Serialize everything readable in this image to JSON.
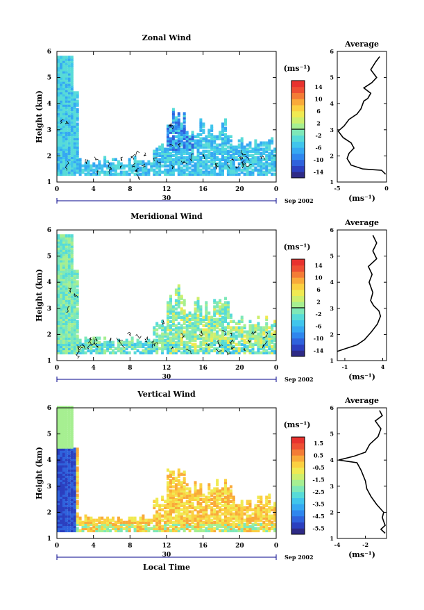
{
  "colors": {
    "scale_main": [
      "#2e2a86",
      "#2b3fbf",
      "#2f62dc",
      "#2f86ee",
      "#35a8f2",
      "#40c5ec",
      "#57dbd8",
      "#7ee8b8",
      "#a6ef91",
      "#cdef6e",
      "#f0ea52",
      "#fbd041",
      "#f9aa3a",
      "#f47c36",
      "#ee4f33",
      "#e8322e"
    ],
    "scale_vertical": [
      "#2e2a86",
      "#2b3fbf",
      "#2f62dc",
      "#2f86ee",
      "#35a8f2",
      "#40c5ec",
      "#57dbd8",
      "#7ee8b8",
      "#a6ef91",
      "#cdef6e",
      "#f0ea52",
      "#fbd041",
      "#f9aa3a",
      "#f47c36",
      "#ee4f33",
      "#e8322e"
    ]
  },
  "chart_data": [
    {
      "type": "heatmap",
      "title": "Zonal Wind",
      "ylabel": "Height (km)",
      "yticks": [
        "1",
        "2",
        "3",
        "4",
        "5",
        "6"
      ],
      "ylim": [
        1,
        6
      ],
      "xticks": [
        "0",
        "4",
        "8",
        "12",
        "16",
        "20",
        "0"
      ],
      "xlim": [
        0,
        24
      ],
      "date_label": "30",
      "date_suffix": "Sep 2002",
      "colorbar_unit": "(ms⁻¹)",
      "colorbar_ticks": [
        "14",
        "10",
        "6",
        "2",
        "-2",
        "-6",
        "-10",
        "-14"
      ],
      "average_panel": {
        "title": "Average",
        "xticks": [
          "-5",
          "0"
        ],
        "xlim": [
          -5,
          0
        ],
        "xlabel": "(ms⁻¹)",
        "yticks": [
          "1",
          "2",
          "3",
          "4",
          "5",
          "6"
        ],
        "profile": [
          [
            -0.1,
            1.3
          ],
          [
            -0.5,
            1.45
          ],
          [
            -2.4,
            1.5
          ],
          [
            -3.6,
            1.65
          ],
          [
            -4.0,
            1.9
          ],
          [
            -3.8,
            2.1
          ],
          [
            -3.3,
            2.3
          ],
          [
            -3.6,
            2.5
          ],
          [
            -4.4,
            2.7
          ],
          [
            -4.9,
            2.95
          ],
          [
            -4.3,
            3.15
          ],
          [
            -3.8,
            3.4
          ],
          [
            -3.0,
            3.6
          ],
          [
            -2.6,
            3.8
          ],
          [
            -2.3,
            4.1
          ],
          [
            -1.9,
            4.2
          ],
          [
            -1.6,
            4.4
          ],
          [
            -2.3,
            4.6
          ],
          [
            -1.5,
            4.8
          ],
          [
            -1.0,
            5.0
          ],
          [
            -1.6,
            5.3
          ],
          [
            -1.1,
            5.6
          ],
          [
            -0.7,
            5.8
          ]
        ]
      }
    },
    {
      "type": "heatmap",
      "title": "Meridional Wind",
      "ylabel": "Height (km)",
      "yticks": [
        "1",
        "2",
        "3",
        "4",
        "5",
        "6"
      ],
      "ylim": [
        1,
        6
      ],
      "xticks": [
        "0",
        "4",
        "8",
        "12",
        "16",
        "20",
        "0"
      ],
      "xlim": [
        0,
        24
      ],
      "date_label": "30",
      "date_suffix": "Sep 2002",
      "colorbar_unit": "(ms⁻¹)",
      "colorbar_ticks": [
        "14",
        "10",
        "6",
        "2",
        "-2",
        "-6",
        "-10",
        "-14"
      ],
      "average_panel": {
        "title": "Average",
        "xticks": [
          "-1",
          "4"
        ],
        "xlim": [
          -2,
          4.5
        ],
        "xlabel": "(ms⁻¹)",
        "yticks": [
          "1",
          "2",
          "3",
          "4",
          "5",
          "6"
        ],
        "profile": [
          [
            -2.0,
            1.35
          ],
          [
            -1.0,
            1.45
          ],
          [
            0.6,
            1.6
          ],
          [
            1.6,
            1.8
          ],
          [
            2.5,
            2.1
          ],
          [
            3.3,
            2.4
          ],
          [
            3.7,
            2.7
          ],
          [
            3.5,
            2.9
          ],
          [
            2.8,
            3.1
          ],
          [
            2.4,
            3.3
          ],
          [
            2.7,
            3.6
          ],
          [
            2.2,
            4.0
          ],
          [
            2.6,
            4.3
          ],
          [
            2.1,
            4.6
          ],
          [
            3.2,
            4.9
          ],
          [
            2.7,
            5.2
          ],
          [
            3.2,
            5.5
          ],
          [
            2.7,
            5.8
          ]
        ]
      }
    },
    {
      "type": "heatmap",
      "title": "Vertical Wind",
      "ylabel": "Height (km)",
      "yticks": [
        "1",
        "2",
        "3",
        "4",
        "5",
        "6"
      ],
      "ylim": [
        1,
        6
      ],
      "xticks": [
        "0",
        "4",
        "8",
        "12",
        "16",
        "20",
        "0"
      ],
      "xlim": [
        0,
        24
      ],
      "date_label": "30",
      "date_suffix": "Sep 2002",
      "xlabel": "Local Time",
      "colorbar_unit": "(ms⁻¹)",
      "colorbar_ticks": [
        "1.5",
        "0.5",
        "-0.5",
        "-1.5",
        "-2.5",
        "-3.5",
        "-4.5",
        "-5.5"
      ],
      "average_panel": {
        "title": "Average",
        "xticks": [
          "-4",
          "-2"
        ],
        "xlim": [
          -4,
          -0.5
        ],
        "xlabel": "(ms⁻¹)",
        "yticks": [
          "1",
          "2",
          "3",
          "4",
          "5",
          "6"
        ],
        "profile": [
          [
            -0.6,
            1.2
          ],
          [
            -0.9,
            1.35
          ],
          [
            -0.6,
            1.5
          ],
          [
            -0.8,
            1.8
          ],
          [
            -0.7,
            2.0
          ],
          [
            -1.2,
            2.3
          ],
          [
            -1.6,
            2.6
          ],
          [
            -1.9,
            2.9
          ],
          [
            -2.0,
            3.2
          ],
          [
            -2.3,
            3.6
          ],
          [
            -2.6,
            3.9
          ],
          [
            -3.9,
            4.0
          ],
          [
            -2.8,
            4.15
          ],
          [
            -2.0,
            4.3
          ],
          [
            -1.7,
            4.6
          ],
          [
            -1.1,
            4.9
          ],
          [
            -0.9,
            5.2
          ],
          [
            -1.3,
            5.5
          ],
          [
            -0.8,
            5.7
          ],
          [
            -1.0,
            5.9
          ]
        ]
      }
    }
  ]
}
